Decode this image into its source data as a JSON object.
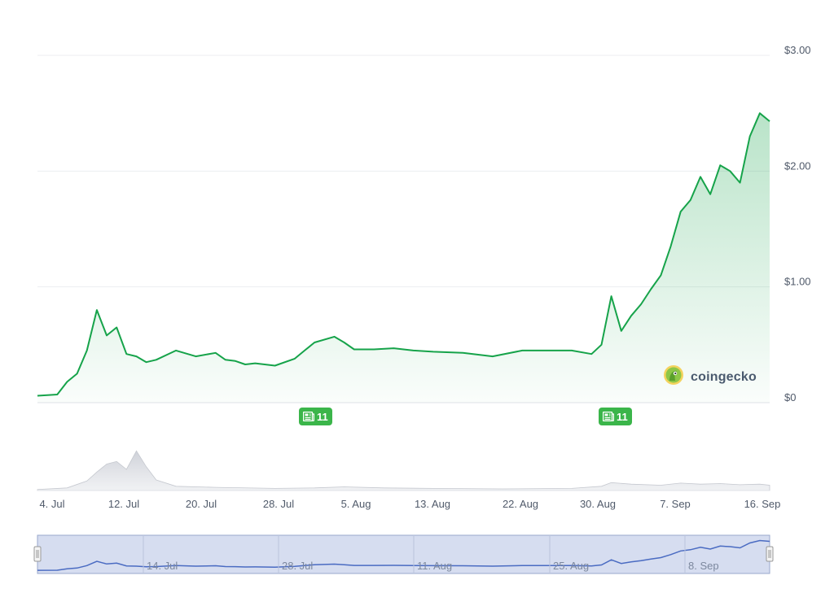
{
  "brand": {
    "name": "coingecko"
  },
  "news": [
    {
      "date": "2024-07-31",
      "count": "11"
    },
    {
      "date": "2024-08-30",
      "count": "11"
    }
  ],
  "chart_data": {
    "type": "area",
    "title": "",
    "xlabel": "",
    "ylabel": "",
    "ylim": [
      0,
      3.0
    ],
    "y_ticks": [
      "$0",
      "$1.00",
      "$2.00",
      "$3.00"
    ],
    "y_tick_values": [
      0,
      1,
      2,
      3
    ],
    "x_ticks": [
      {
        "label": "4. Jul",
        "date": "2024-07-04"
      },
      {
        "label": "12. Jul",
        "date": "2024-07-12"
      },
      {
        "label": "20. Jul",
        "date": "2024-07-20"
      },
      {
        "label": "28. Jul",
        "date": "2024-07-28"
      },
      {
        "label": "5. Aug",
        "date": "2024-08-05"
      },
      {
        "label": "13. Aug",
        "date": "2024-08-13"
      },
      {
        "label": "22. Aug",
        "date": "2024-08-22"
      },
      {
        "label": "30. Aug",
        "date": "2024-08-30"
      },
      {
        "label": "7. Sep",
        "date": "2024-09-07"
      },
      {
        "label": "16. Sep",
        "date": "2024-09-16"
      }
    ],
    "navigator_ticks": [
      {
        "label": "14. Jul",
        "date": "2024-07-14"
      },
      {
        "label": "28. Jul",
        "date": "2024-07-28"
      },
      {
        "label": "11. Aug",
        "date": "2024-08-11"
      },
      {
        "label": "25. Aug",
        "date": "2024-08-25"
      },
      {
        "label": "8. Sep",
        "date": "2024-09-08"
      }
    ],
    "grid": true,
    "line_color": "#16a34a",
    "fill_color": "#16a34a",
    "navigator_color": "#4a6bc2",
    "series": [
      {
        "x": [
          "2024-07-04",
          "2024-07-06",
          "2024-07-07",
          "2024-07-08",
          "2024-07-09",
          "2024-07-10",
          "2024-07-11",
          "2024-07-12",
          "2024-07-13",
          "2024-07-14",
          "2024-07-15",
          "2024-07-16",
          "2024-07-18",
          "2024-07-20",
          "2024-07-22",
          "2024-07-23",
          "2024-07-24",
          "2024-07-25",
          "2024-07-26",
          "2024-07-28",
          "2024-07-30",
          "2024-07-31",
          "2024-08-01",
          "2024-08-03",
          "2024-08-04",
          "2024-08-05",
          "2024-08-07",
          "2024-08-09",
          "2024-08-11",
          "2024-08-13",
          "2024-08-16",
          "2024-08-19",
          "2024-08-22",
          "2024-08-24",
          "2024-08-27",
          "2024-08-29",
          "2024-08-30",
          "2024-08-31",
          "2024-09-01",
          "2024-09-02",
          "2024-09-03",
          "2024-09-04",
          "2024-09-05",
          "2024-09-06",
          "2024-09-07",
          "2024-09-08",
          "2024-09-09",
          "2024-09-10",
          "2024-09-11",
          "2024-09-12",
          "2024-09-13",
          "2024-09-14",
          "2024-09-15",
          "2024-09-16"
        ],
        "y": [
          0.06,
          0.07,
          0.18,
          0.25,
          0.45,
          0.8,
          0.58,
          0.65,
          0.42,
          0.4,
          0.35,
          0.37,
          0.45,
          0.4,
          0.43,
          0.37,
          0.36,
          0.33,
          0.34,
          0.32,
          0.38,
          0.45,
          0.52,
          0.57,
          0.52,
          0.46,
          0.46,
          0.47,
          0.45,
          0.44,
          0.43,
          0.4,
          0.45,
          0.45,
          0.45,
          0.42,
          0.5,
          0.92,
          0.62,
          0.75,
          0.85,
          0.98,
          1.1,
          1.35,
          1.65,
          1.75,
          1.95,
          1.8,
          2.05,
          2.0,
          1.9,
          2.3,
          2.5,
          2.43
        ]
      }
    ],
    "volume": {
      "x": [
        "2024-07-04",
        "2024-07-07",
        "2024-07-09",
        "2024-07-10",
        "2024-07-11",
        "2024-07-12",
        "2024-07-13",
        "2024-07-14",
        "2024-07-15",
        "2024-07-16",
        "2024-07-18",
        "2024-07-22",
        "2024-07-28",
        "2024-08-01",
        "2024-08-04",
        "2024-08-08",
        "2024-08-13",
        "2024-08-20",
        "2024-08-27",
        "2024-08-30",
        "2024-08-31",
        "2024-09-02",
        "2024-09-05",
        "2024-09-07",
        "2024-09-09",
        "2024-09-11",
        "2024-09-13",
        "2024-09-15",
        "2024-09-16"
      ],
      "y": [
        0.02,
        0.05,
        0.18,
        0.35,
        0.5,
        0.55,
        0.4,
        0.75,
        0.45,
        0.2,
        0.08,
        0.06,
        0.04,
        0.05,
        0.07,
        0.05,
        0.04,
        0.03,
        0.04,
        0.08,
        0.15,
        0.12,
        0.1,
        0.14,
        0.12,
        0.13,
        0.11,
        0.12,
        0.1
      ]
    }
  }
}
